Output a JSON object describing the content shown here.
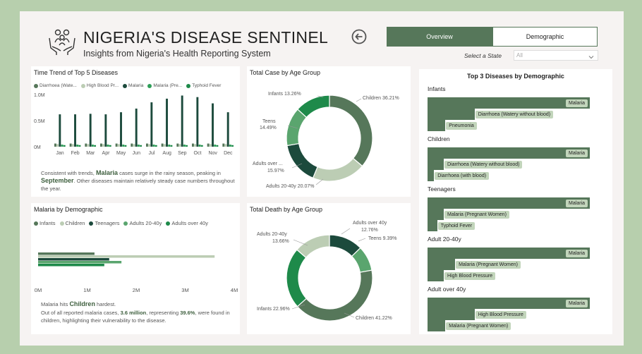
{
  "header": {
    "title": "NIGERIA'S DISEASE SENTINEL",
    "subtitle": "Insights from Nigeria's Health Reporting System",
    "logo_icon": "family-care-icon",
    "back_icon": "back-arrow-icon"
  },
  "nav": {
    "overview_label": "Overview",
    "demographic_label": "Demographic",
    "state_label": "Select a State",
    "state_value": "All"
  },
  "colors": {
    "dark_green": "#56775a",
    "deep_green": "#1c4a3c",
    "light_green": "#bccdb4",
    "bright_green": "#2e9e58",
    "mid_green": "#5aa56e"
  },
  "time_trend": {
    "title": "Time Trend of Top 5 Diseases",
    "legend": [
      {
        "label": "Diarrhoea (Wate...",
        "color": "#56775a"
      },
      {
        "label": "High Blood Pr...",
        "color": "#bccdb4"
      },
      {
        "label": "Malaria",
        "color": "#1c4a3c"
      },
      {
        "label": "Malaria (Pre...",
        "color": "#2e9e58"
      },
      {
        "label": "Typhoid Fever",
        "color": "#1e8a4a"
      }
    ],
    "note_pre": "Consistent with trends, ",
    "note_b1": "Malaria",
    "note_mid": " cases surge in the rainy season, peaking in ",
    "note_b2": "September",
    "note_post": ". Other diseases maintain relatively steady case numbers throughout the year."
  },
  "total_case": {
    "title": "Total Case by Age Group",
    "labels": {
      "infants": "Infants 13.26%",
      "children": "Children 36.21%",
      "teens_1": "Teens",
      "teens_2": "14.49%",
      "adults_over_1": "Adults over ...",
      "adults_over_2": "15.97%",
      "adults_2040": "Adults 20-40y 20.07%"
    }
  },
  "total_death": {
    "title": "Total Death by Age Group",
    "labels": {
      "adults_2040_1": "Adults 20-40y",
      "adults_2040_2": "13.66%",
      "adults_over_1": "Adults over 40y",
      "adults_over_2": "12.76%",
      "teens": "Teens 9.39%",
      "infants": "Infants 22.96%",
      "children": "Children 41.22%"
    }
  },
  "malaria_demo": {
    "title": "Malaria by Demographic",
    "legend": [
      {
        "label": "Infants",
        "color": "#56775a"
      },
      {
        "label": "Children",
        "color": "#bccdb4"
      },
      {
        "label": "Teenagers",
        "color": "#1c4a3c"
      },
      {
        "label": "Adults 20-40y",
        "color": "#5aa56e"
      },
      {
        "label": "Adults over 40y",
        "color": "#1e8a4a"
      }
    ],
    "axis": [
      "0M",
      "1M",
      "2M",
      "3M",
      "4M"
    ],
    "note_l1_pre": "Malaria hits ",
    "note_l1_b": "Children",
    "note_l1_post": " hardest.",
    "note_l2_pre": "Out of all reported malaria cases, ",
    "note_l2_b1": "3.6 million",
    "note_l2_mid": ", representing ",
    "note_l2_b2": "39.6%",
    "note_l2_post": ", were found in children, highlighting their vulnerability to the disease."
  },
  "chart_data": [
    {
      "type": "bar",
      "title": "Time Trend of Top 5 Diseases",
      "categories": [
        "Jan",
        "Feb",
        "Mar",
        "Apr",
        "May",
        "Jun",
        "Jul",
        "Aug",
        "Sep",
        "Oct",
        "Nov",
        "Dec"
      ],
      "y_ticks": [
        "1.0M",
        "0.5M",
        "0M"
      ],
      "ylim": [
        0,
        1000000
      ],
      "series": [
        {
          "name": "Diarrhoea (Wate...",
          "values": [
            60000,
            60000,
            60000,
            60000,
            60000,
            60000,
            60000,
            60000,
            60000,
            60000,
            60000,
            60000
          ]
        },
        {
          "name": "High Blood Pr...",
          "values": [
            50000,
            50000,
            50000,
            50000,
            50000,
            50000,
            50000,
            50000,
            50000,
            50000,
            50000,
            50000
          ]
        },
        {
          "name": "Malaria",
          "values": [
            620000,
            620000,
            630000,
            620000,
            660000,
            730000,
            850000,
            920000,
            980000,
            950000,
            830000,
            660000
          ]
        },
        {
          "name": "Malaria (Pre...",
          "values": [
            40000,
            40000,
            40000,
            40000,
            40000,
            40000,
            40000,
            40000,
            40000,
            40000,
            40000,
            40000
          ]
        },
        {
          "name": "Typhoid Fever",
          "values": [
            30000,
            30000,
            30000,
            30000,
            30000,
            30000,
            30000,
            30000,
            30000,
            30000,
            30000,
            30000
          ]
        }
      ]
    },
    {
      "type": "pie",
      "title": "Total Case by Age Group",
      "slices": [
        {
          "name": "Children",
          "value": 36.21,
          "color": "#56775a"
        },
        {
          "name": "Adults 20-40y",
          "value": 20.07,
          "color": "#bccdb4"
        },
        {
          "name": "Adults over 40y",
          "value": 15.97,
          "color": "#1c4a3c"
        },
        {
          "name": "Teens",
          "value": 14.49,
          "color": "#5aa56e"
        },
        {
          "name": "Infants",
          "value": 13.26,
          "color": "#1e8a4a"
        }
      ]
    },
    {
      "type": "pie",
      "title": "Total Death by Age Group",
      "slices": [
        {
          "name": "Adults over 40y",
          "value": 12.76,
          "color": "#1c4a3c"
        },
        {
          "name": "Teens",
          "value": 9.39,
          "color": "#5aa56e"
        },
        {
          "name": "Children",
          "value": 41.22,
          "color": "#56775a"
        },
        {
          "name": "Infants",
          "value": 22.96,
          "color": "#1e8a4a"
        },
        {
          "name": "Adults 20-40y",
          "value": 13.66,
          "color": "#bccdb4"
        }
      ]
    },
    {
      "type": "bar",
      "title": "Malaria by Demographic",
      "xlim": [
        0,
        4000000
      ],
      "categories": [
        "Infants",
        "Children",
        "Teenagers",
        "Adults 20-40y",
        "Adults over 40y"
      ],
      "values": [
        1150000,
        3600000,
        1450000,
        1700000,
        1350000
      ]
    }
  ],
  "top3": {
    "title": "Top 3 Diseases by Demographic",
    "groups": [
      {
        "name": "Infants",
        "items": [
          {
            "label": "Malaria",
            "value": 1.0
          },
          {
            "label": "Diarrhoea (Watery without blood)",
            "value": 0.29
          },
          {
            "label": "Pneumonia",
            "value": 0.11
          }
        ]
      },
      {
        "name": "Children",
        "items": [
          {
            "label": "Malaria",
            "value": 1.0
          },
          {
            "label": "Diarrhoea (Watery without blood)",
            "value": 0.1
          },
          {
            "label": "Diarrhoea (with blood)",
            "value": 0.04
          }
        ]
      },
      {
        "name": "Teenagers",
        "items": [
          {
            "label": "Malaria",
            "value": 1.0
          },
          {
            "label": "Malaria (Pregnant Women)",
            "value": 0.1
          },
          {
            "label": "Typhoid Fever",
            "value": 0.06
          }
        ]
      },
      {
        "name": "Adult 20-40y",
        "items": [
          {
            "label": "Malaria",
            "value": 1.0
          },
          {
            "label": "Malaria (Pregnant Women)",
            "value": 0.17
          },
          {
            "label": "High Blood Pressure",
            "value": 0.1
          }
        ]
      },
      {
        "name": "Adult over 40y",
        "items": [
          {
            "label": "Malaria",
            "value": 1.0
          },
          {
            "label": "High Blood Pressure",
            "value": 0.29
          },
          {
            "label": "Malaria (Pregnant Women)",
            "value": 0.11
          }
        ]
      }
    ]
  }
}
